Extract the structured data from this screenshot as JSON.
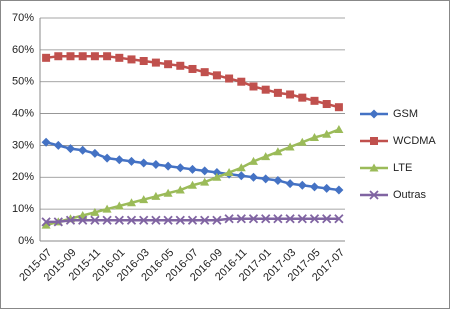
{
  "chart_data": {
    "type": "line",
    "categories": [
      "2015-07",
      null,
      "2015-09",
      null,
      "2015-11",
      null,
      "2016-01",
      null,
      "2016-03",
      null,
      "2016-05",
      null,
      "2016-07",
      null,
      "2016-09",
      null,
      "2016-11",
      null,
      "2017-01",
      null,
      "2017-03",
      null,
      "2017-05",
      null,
      "2017-07"
    ],
    "series": [
      {
        "name": "GSM",
        "color": "#4472c4",
        "marker": "diamond",
        "values": [
          31,
          30,
          29,
          28.5,
          27.5,
          26,
          25.5,
          25,
          24.5,
          24,
          23.5,
          23,
          22.5,
          22,
          21.5,
          21,
          20.5,
          20,
          19.5,
          19,
          18,
          17.5,
          17,
          16.5,
          16
        ]
      },
      {
        "name": "WCDMA",
        "color": "#c0504d",
        "marker": "square",
        "values": [
          57.5,
          58,
          58,
          58,
          58,
          58,
          57.5,
          57,
          56.5,
          56,
          55.5,
          55,
          54,
          53,
          52,
          51,
          50,
          48.5,
          47.5,
          46.5,
          46,
          45,
          44,
          43,
          42
        ]
      },
      {
        "name": "LTE",
        "color": "#9bbb59",
        "marker": "triangle",
        "values": [
          5,
          6,
          7,
          8,
          9,
          10,
          11,
          12,
          13,
          14,
          15,
          16,
          17.5,
          18.5,
          20,
          21.5,
          23,
          25,
          26.5,
          28,
          29.5,
          31,
          32.5,
          33.5,
          35
        ]
      },
      {
        "name": "Outras",
        "color": "#8064a2",
        "marker": "x",
        "values": [
          6,
          6,
          6.5,
          6.5,
          6.5,
          6.5,
          6.5,
          6.5,
          6.5,
          6.5,
          6.5,
          6.5,
          6.5,
          6.5,
          6.5,
          7,
          7,
          7,
          7,
          7,
          7,
          7,
          7,
          7,
          7
        ]
      }
    ],
    "ylim": [
      0,
      70
    ],
    "yticks": [
      {
        "value": 0,
        "label": "0%"
      },
      {
        "value": 10,
        "label": "10%"
      },
      {
        "value": 20,
        "label": "20%"
      },
      {
        "value": 30,
        "label": "30%"
      },
      {
        "value": 40,
        "label": "40%"
      },
      {
        "value": 50,
        "label": "50%"
      },
      {
        "value": 60,
        "label": "60%"
      },
      {
        "value": 70,
        "label": "70%"
      }
    ],
    "grid": true,
    "legend": "right"
  }
}
